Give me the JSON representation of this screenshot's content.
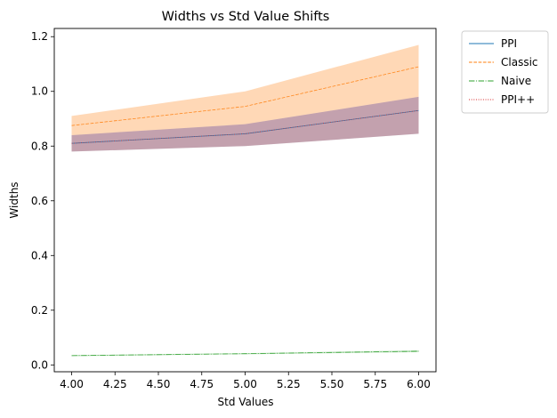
{
  "chart_data": {
    "type": "line",
    "title": "Widths vs Std Value Shifts",
    "xlabel": "Std Values",
    "ylabel": "Widths",
    "x": [
      4.0,
      5.0,
      6.0
    ],
    "xlim": [
      3.9,
      6.1
    ],
    "ylim": [
      -0.025,
      1.23
    ],
    "xticks": [
      "4.00",
      "4.25",
      "4.50",
      "4.75",
      "5.00",
      "5.25",
      "5.50",
      "5.75",
      "6.00"
    ],
    "yticks": [
      "0.0",
      "0.2",
      "0.4",
      "0.6",
      "0.8",
      "1.0",
      "1.2"
    ],
    "grid": false,
    "legend_position": "outside-upper-right",
    "series": [
      {
        "name": "PPI",
        "values": [
          0.81,
          0.845,
          0.93
        ],
        "lower": [
          0.78,
          0.8,
          0.845
        ],
        "upper": [
          0.84,
          0.88,
          0.98
        ],
        "color": "#1f77b4",
        "dash": "solid"
      },
      {
        "name": "Classic",
        "values": [
          0.875,
          0.945,
          1.09
        ],
        "lower": [
          0.84,
          0.88,
          0.98
        ],
        "upper": [
          0.91,
          1.0,
          1.17
        ],
        "color": "#ff7f0e",
        "dash": "dashed"
      },
      {
        "name": "Naive",
        "values": [
          0.034,
          0.041,
          0.05
        ],
        "lower": [
          0.032,
          0.039,
          0.047
        ],
        "upper": [
          0.036,
          0.043,
          0.053
        ],
        "color": "#2ca02c",
        "dash": "dashdot"
      },
      {
        "name": "PPI++",
        "values": [
          0.81,
          0.845,
          0.93
        ],
        "lower": [
          0.78,
          0.8,
          0.845
        ],
        "upper": [
          0.84,
          0.88,
          0.98
        ],
        "color": "#d62728",
        "dash": "dotted"
      }
    ]
  }
}
